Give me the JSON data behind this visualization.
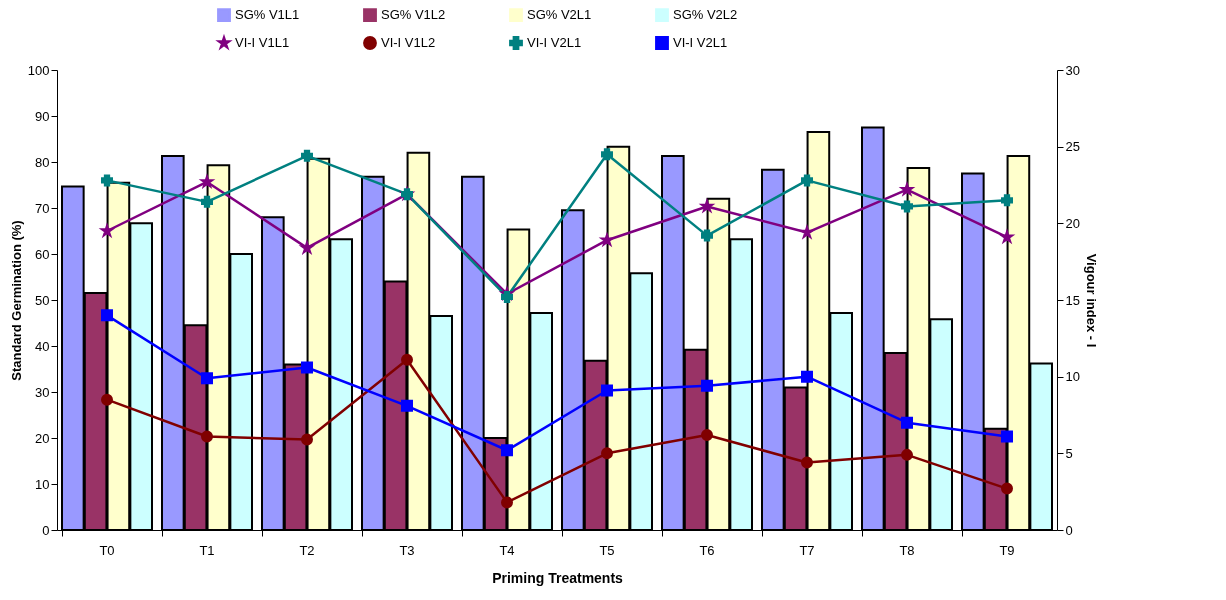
{
  "chart_data": {
    "type": "bar",
    "xlabel": "Priming Treatments",
    "ylabel": "Standard Germination (%)",
    "y2label": "Vigour index - I",
    "categories": [
      "T0",
      "T1",
      "T2",
      "T3",
      "T4",
      "T5",
      "T6",
      "T7",
      "T8",
      "T9"
    ],
    "series": [
      {
        "name": "SG% V1L1",
        "color": "#9999ff",
        "values": [
          74.7,
          81.3,
          68,
          76.8,
          76.8,
          69.5,
          81.3,
          78.3,
          87.5,
          77.5
        ]
      },
      {
        "name": "SG% V1L2",
        "color": "#993366",
        "values": [
          51.5,
          44.5,
          36,
          54,
          20,
          36.8,
          39.2,
          31,
          38.5,
          22
        ]
      },
      {
        "name": "SG% V2L1",
        "color": "#ffffcc",
        "values": [
          75.5,
          79.3,
          80.7,
          82,
          65.3,
          83.3,
          72,
          86.5,
          78.7,
          81.3
        ]
      },
      {
        "name": "SG% V2L2",
        "color": "#ccffff",
        "values": [
          66.7,
          60,
          63.2,
          46.5,
          47.2,
          55.8,
          63.2,
          47.2,
          45.8,
          36.2
        ]
      },
      {
        "name": "VI-I V1L1",
        "type": "line",
        "axis": "y2",
        "marker": "star",
        "color": "#800080",
        "values": [
          19.5,
          22.7,
          18.4,
          21.9,
          15.4,
          18.9,
          21.1,
          19.4,
          22.2,
          19.1
        ]
      },
      {
        "name": "VI-I V1L2",
        "type": "line",
        "axis": "y2",
        "marker": "circle",
        "color": "#800000",
        "values": [
          8.5,
          6.1,
          5.9,
          11.1,
          1.8,
          5.0,
          6.2,
          4.4,
          4.9,
          2.7
        ]
      },
      {
        "name": "VI-I V2L1",
        "type": "line",
        "axis": "y2",
        "marker": "cross",
        "color": "#008080",
        "values": [
          22.8,
          21.4,
          24.4,
          21.9,
          15.2,
          24.5,
          19.2,
          22.8,
          21.1,
          21.5
        ]
      },
      {
        "name": "VI-I V2L1",
        "type": "line",
        "axis": "y2",
        "marker": "square",
        "color": "#0000ff",
        "values": [
          14.0,
          9.9,
          10.6,
          8.1,
          5.2,
          9.1,
          9.4,
          10.0,
          7.0,
          6.1
        ]
      }
    ],
    "ylim": [
      0,
      100
    ],
    "yticks": [
      0,
      10,
      20,
      30,
      40,
      50,
      60,
      70,
      80,
      90,
      100
    ],
    "y2lim": [
      0,
      30
    ],
    "y2ticks": [
      0,
      5,
      10,
      15,
      20,
      25,
      30
    ],
    "legend": "top",
    "grid": false
  }
}
